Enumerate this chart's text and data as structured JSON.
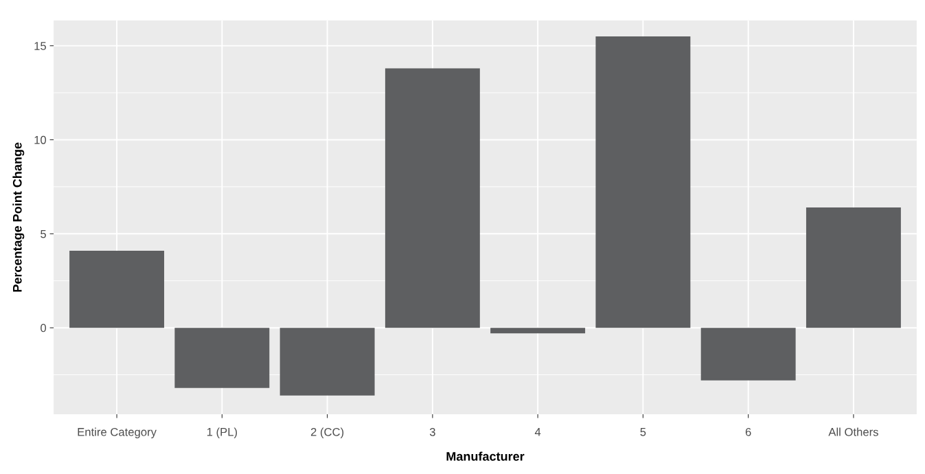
{
  "chart_data": {
    "type": "bar",
    "xlabel": "Manufacturer",
    "ylabel": "Percentage Point Change",
    "categories": [
      "Entire Category",
      "1 (PL)",
      "2 (CC)",
      "3",
      "4",
      "5",
      "6",
      "All Others"
    ],
    "values": [
      4.1,
      -3.2,
      -3.6,
      13.8,
      -0.3,
      15.5,
      -2.8,
      6.4
    ],
    "color": "#5e5f61",
    "ylim": [
      -4.6,
      16.35
    ],
    "yticks": [
      0,
      5,
      10,
      15
    ],
    "grid": true
  }
}
